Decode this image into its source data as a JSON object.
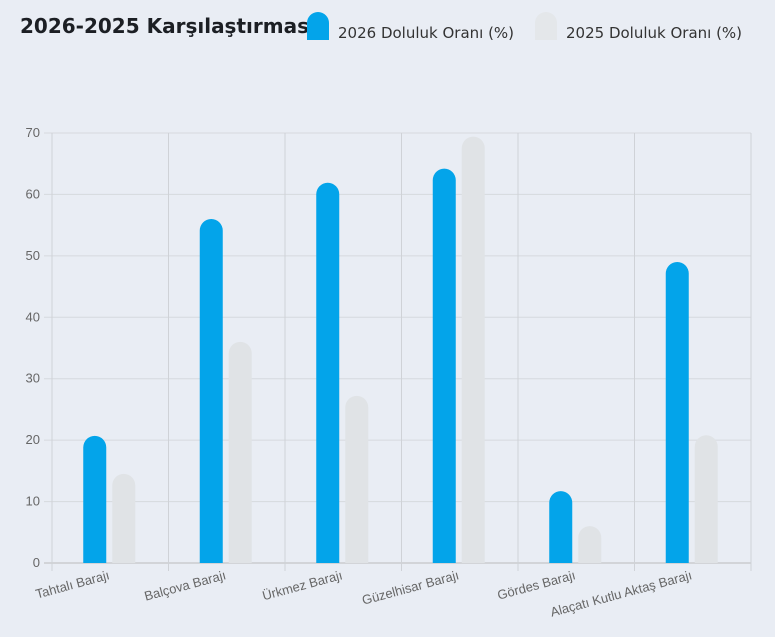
{
  "chart_data": {
    "type": "bar",
    "title": "2026-2025 Karşılaştırması",
    "categories": [
      "Tahtalı Barajı",
      "Balçova Barajı",
      "Ürkmez Barajı",
      "Güzelhisar Barajı",
      "Gördes Barajı",
      "Alaçatı Kutlu Aktaş Barajı"
    ],
    "series": [
      {
        "name": "2026 Doluluk Oranı (%)",
        "color": "#03a4ea",
        "values": [
          20.7,
          56.0,
          61.9,
          64.2,
          11.7,
          49.0
        ]
      },
      {
        "name": "2025 Doluluk Oranı (%)",
        "color": "#e0e3e6",
        "values": [
          14.5,
          36.0,
          27.2,
          69.4,
          6.0,
          20.8
        ]
      }
    ],
    "ylim": [
      0,
      70
    ],
    "yticks": [
      "0",
      "10",
      "20",
      "30",
      "40",
      "50",
      "60",
      "70"
    ],
    "grid": true,
    "legend": "top"
  }
}
